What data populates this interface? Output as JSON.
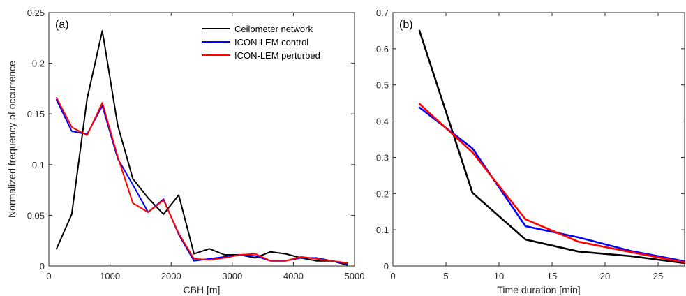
{
  "chart_data": [
    {
      "type": "line",
      "panel_label": "(a)",
      "xlabel": "CBH [m]",
      "ylabel": "Normalized frequency of occurrence",
      "xlim": [
        0,
        5000
      ],
      "ylim": [
        0,
        0.25
      ],
      "xticks": [
        "0",
        "1000",
        "2000",
        "3000",
        "4000",
        "5000"
      ],
      "yticks": [
        "0",
        "0.05",
        "0.1",
        "0.15",
        "0.2",
        "0.25"
      ],
      "grid": false,
      "legend_position": "top-right",
      "x": [
        125,
        375,
        625,
        875,
        1125,
        1375,
        1625,
        1875,
        2125,
        2375,
        2625,
        2875,
        3125,
        3375,
        3625,
        3875,
        4125,
        4375,
        4625,
        4875
      ],
      "series": [
        {
          "name": "Ceilometer network",
          "color": "#000000",
          "values": [
            0.017,
            0.051,
            0.165,
            0.232,
            0.139,
            0.086,
            0.067,
            0.051,
            0.07,
            0.012,
            0.017,
            0.011,
            0.011,
            0.008,
            0.014,
            0.012,
            0.008,
            0.005,
            0.005,
            0.001
          ]
        },
        {
          "name": "ICON-LEM control",
          "color": "#0000ff",
          "values": [
            0.164,
            0.133,
            0.13,
            0.158,
            0.106,
            0.08,
            0.053,
            0.066,
            0.031,
            0.005,
            0.007,
            0.009,
            0.011,
            0.01,
            0.005,
            0.005,
            0.008,
            0.008,
            0.005,
            0.002
          ]
        },
        {
          "name": "ICON-LEM perturbed",
          "color": "#ff0000",
          "values": [
            0.166,
            0.137,
            0.129,
            0.161,
            0.108,
            0.062,
            0.053,
            0.065,
            0.032,
            0.007,
            0.006,
            0.008,
            0.011,
            0.012,
            0.005,
            0.005,
            0.009,
            0.007,
            0.005,
            0.003
          ]
        }
      ]
    },
    {
      "type": "line",
      "panel_label": "(b)",
      "xlabel": "Time duration [min]",
      "ylabel": "",
      "xlim": [
        0,
        27.5
      ],
      "ylim": [
        0,
        0.7
      ],
      "xticks": [
        "0",
        "5",
        "10",
        "15",
        "20",
        "25"
      ],
      "yticks": [
        "0",
        "0.1",
        "0.2",
        "0.3",
        "0.4",
        "0.5",
        "0.6",
        "0.7"
      ],
      "grid": false,
      "x": [
        2.5,
        7.5,
        12.5,
        17.5,
        22.5,
        27.5
      ],
      "series": [
        {
          "color": "#000000",
          "values": [
            0.65,
            0.202,
            0.073,
            0.04,
            0.027,
            0.008
          ]
        },
        {
          "color": "#0000ff",
          "values": [
            0.438,
            0.325,
            0.11,
            0.079,
            0.041,
            0.013
          ]
        },
        {
          "color": "#ff0000",
          "values": [
            0.448,
            0.314,
            0.129,
            0.067,
            0.038,
            0.01
          ]
        }
      ]
    }
  ]
}
